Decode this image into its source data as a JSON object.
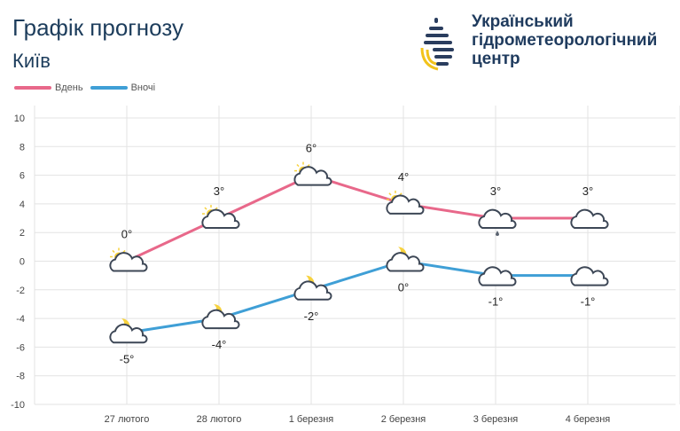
{
  "header": {
    "title": "Графік прогнозу",
    "city": "Київ",
    "org_lines": [
      "Український",
      "гідрометеорологічний",
      "центр"
    ]
  },
  "colors": {
    "day": "#e8688a",
    "night": "#3f9fd6",
    "grid": "#e3e3e3",
    "logo_navy": "#2a3d5e",
    "logo_yellow": "#f2c31b"
  },
  "chart_data": {
    "type": "line",
    "categories": [
      "27 лютого",
      "28 лютого",
      "1 березня",
      "2 березня",
      "3 березня",
      "4 березня"
    ],
    "ylim": [
      -10,
      10
    ],
    "yticks": [
      10,
      8,
      6,
      4,
      2,
      0,
      -2,
      -4,
      -6,
      -8,
      -10
    ],
    "grid": true,
    "legend_placement": "top-left",
    "series": [
      {
        "name": "Вдень",
        "values": [
          0,
          3,
          6,
          4,
          3,
          3
        ],
        "labels": [
          "0°",
          "3°",
          "6°",
          "4°",
          "3°",
          "3°"
        ],
        "icons": [
          "partly-sunny-icon",
          "partly-sunny-icon",
          "partly-sunny-icon",
          "partly-sunny-icon",
          "cloud-rain-icon",
          "cloud-icon"
        ]
      },
      {
        "name": "Вночі",
        "values": [
          -5,
          -4,
          -2,
          0,
          -1,
          -1
        ],
        "labels": [
          "-5°",
          "-4°",
          "-2°",
          "0°",
          "-1°",
          "-1°"
        ],
        "icons": [
          "moon-cloud-icon",
          "moon-cloud-icon",
          "moon-cloud-icon",
          "moon-cloud-icon",
          "cloud-icon",
          "cloud-icon"
        ]
      }
    ]
  }
}
